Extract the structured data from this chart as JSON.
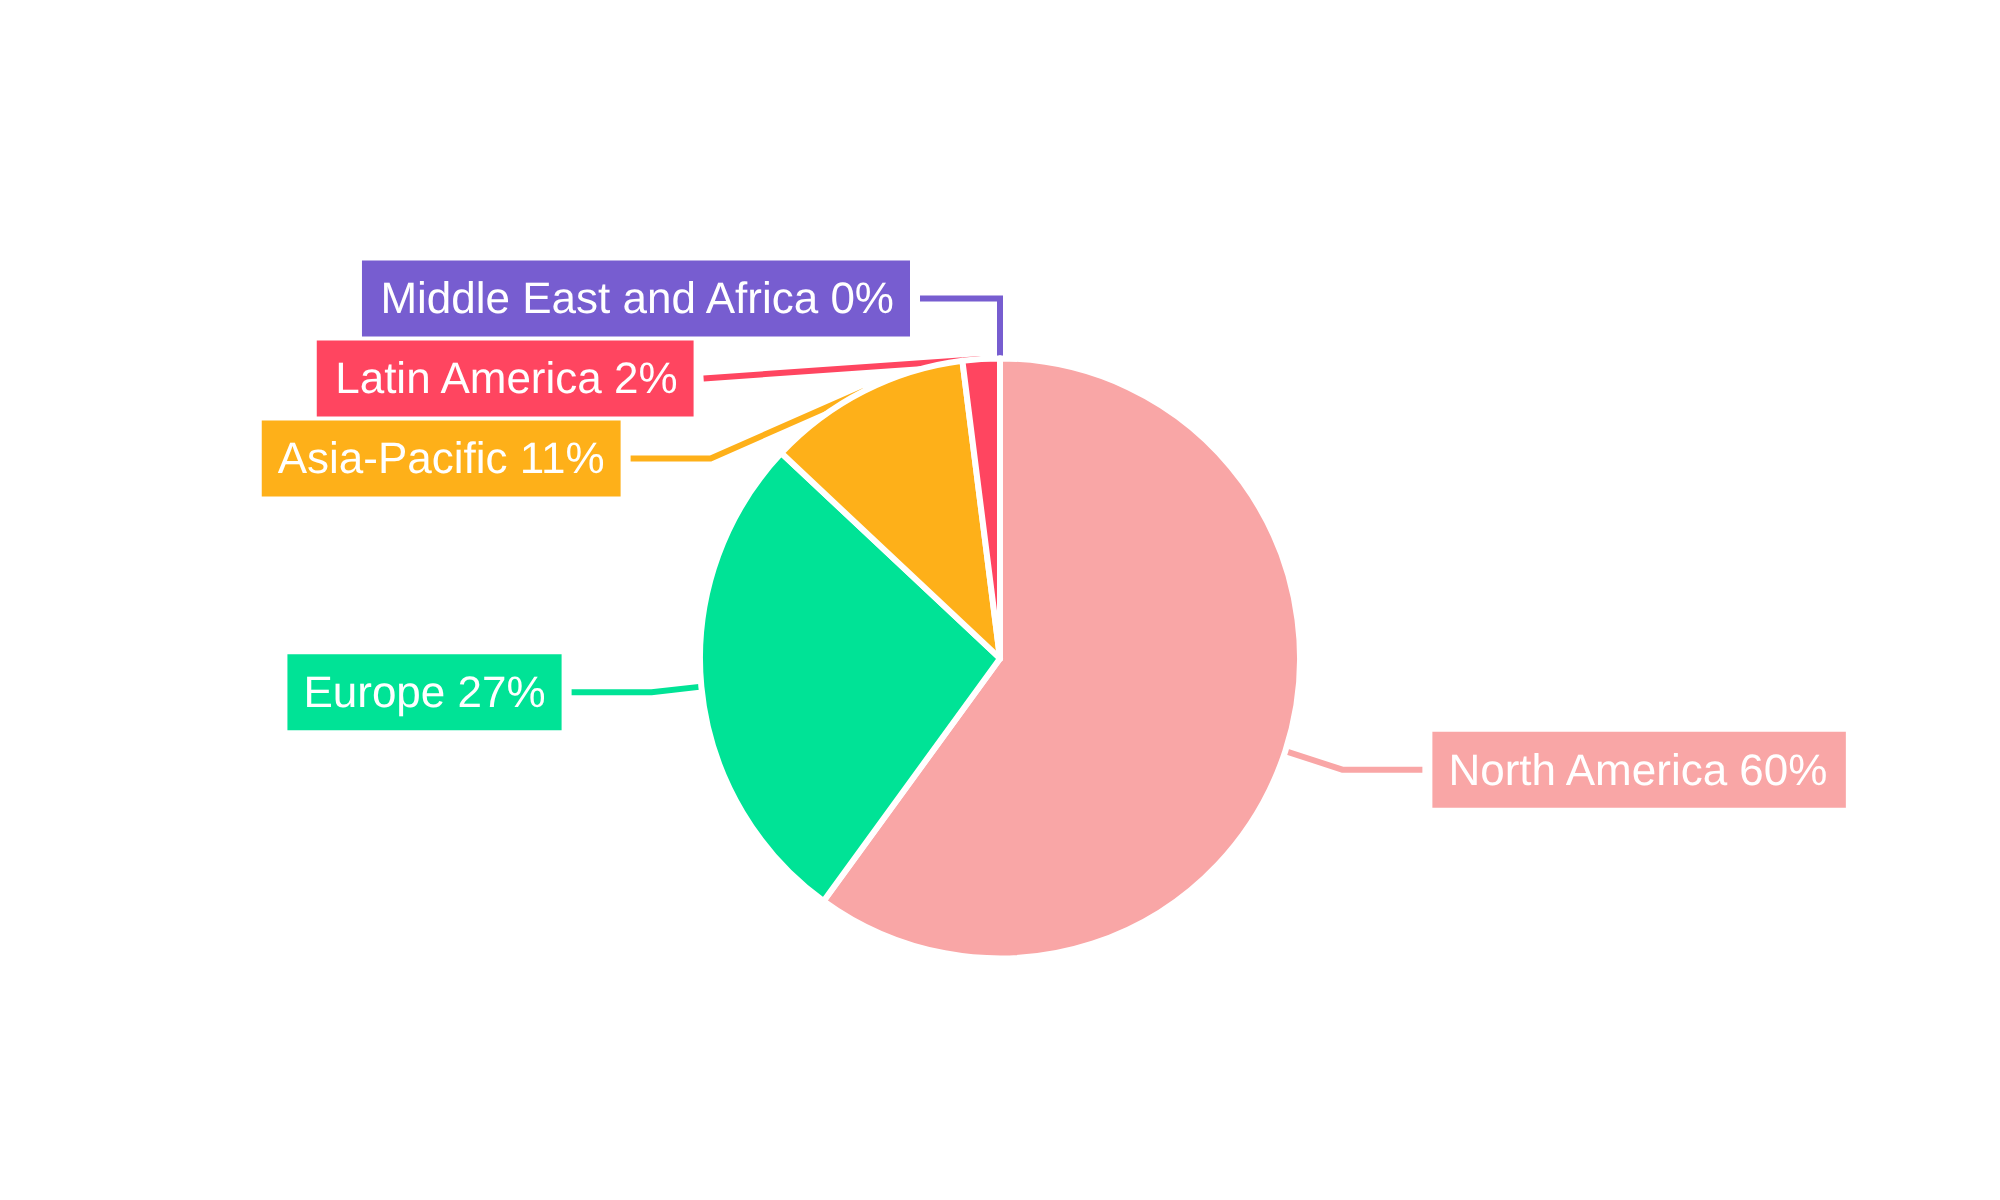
{
  "chart_data": {
    "type": "pie",
    "categories": [
      "North America",
      "Europe",
      "Asia-Pacific",
      "Latin America",
      "Middle East and Africa"
    ],
    "values": [
      60,
      27,
      11,
      2,
      0
    ],
    "colors": [
      "#f9a6a6",
      "#00e396",
      "#feb019",
      "#ff4560",
      "#775dd0"
    ],
    "value_labels": [
      "60%",
      "27%",
      "11%",
      "2%",
      "0%"
    ]
  }
}
